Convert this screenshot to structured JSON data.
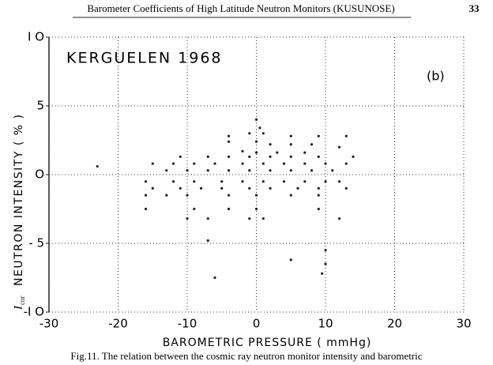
{
  "header": {
    "title": "Barometer Coefficients of High Latitude Neutron Monitors (KUSUNOSE)",
    "page": "33"
  },
  "chart_data": {
    "type": "scatter",
    "annotation": "KERGUELEN 1968",
    "panel": "(b)",
    "xlabel": "BAROMETRIC PRESSURE ( mmHg)",
    "ylabel_symbol": "I",
    "ylabel_subscript": "cor",
    "ylabel": "NEUTRON INTENSITY ( % )",
    "xlim": [
      -30,
      30
    ],
    "ylim": [
      -10,
      10
    ],
    "xticks": [
      -30,
      -20,
      -10,
      0,
      10,
      20,
      30
    ],
    "yticks": [
      {
        "value": 10,
        "label": "I O"
      },
      5,
      {
        "value": 0,
        "label": "O"
      },
      {
        "value": -5,
        "label": "- 5"
      },
      {
        "value": -10,
        "label": "-I O"
      }
    ],
    "grid": true,
    "color": "#222222",
    "x": [
      0,
      0.5,
      -1,
      1,
      -4,
      5,
      9,
      13,
      -4,
      0,
      2,
      5,
      8,
      12,
      -2,
      0,
      3,
      7,
      -11,
      -7,
      -4,
      -1,
      2,
      5,
      9,
      14,
      -15,
      -12,
      -9,
      -6,
      -2,
      1,
      4,
      7,
      10,
      13,
      -13,
      -10,
      -7,
      -4,
      -1,
      2,
      5,
      8,
      11,
      -16,
      -12,
      -9,
      -5,
      -2,
      1,
      4,
      7,
      10,
      12,
      -15,
      -11,
      -8,
      -5,
      -1,
      2,
      6,
      9,
      13,
      -16,
      -13,
      -10,
      -4,
      0,
      5,
      9,
      -16,
      -9,
      -4,
      0,
      9,
      -10,
      -7,
      -1,
      1,
      12,
      -7,
      10,
      5,
      10,
      9.5,
      -6,
      -23
    ],
    "values": [
      4,
      3.4,
      3,
      3,
      2.8,
      2.8,
      2.8,
      2.8,
      2.4,
      2.4,
      2.2,
      2.2,
      2.2,
      2,
      1.7,
      1.6,
      1.6,
      1.6,
      1.3,
      1.3,
      1.3,
      1.3,
      1.3,
      1.3,
      1.3,
      1.3,
      0.8,
      0.8,
      0.8,
      0.8,
      0.8,
      0.8,
      0.8,
      0.8,
      0.8,
      0.8,
      0.3,
      0.3,
      0.3,
      0.3,
      0.3,
      0.3,
      0.3,
      0.3,
      0.3,
      -0.5,
      -0.5,
      -0.5,
      -0.5,
      -0.5,
      -0.5,
      -0.5,
      -0.5,
      -0.5,
      -0.5,
      -1,
      -1,
      -1,
      -1,
      -1,
      -1,
      -1,
      -1,
      -1,
      -1.5,
      -1.5,
      -1.5,
      -1.5,
      -1.5,
      -1.5,
      -1.5,
      -2.5,
      -2.5,
      -2.5,
      -2.5,
      -2.5,
      -3.2,
      -3.2,
      -3.2,
      -3.2,
      -3.2,
      -4.8,
      -5.5,
      -6.2,
      -6.5,
      -7.2,
      -7.5,
      0.6
    ]
  },
  "caption": "Fig.11.  The  relation  between  the  cosmic  ray  neutron  monitor  intensity  and  barometric"
}
